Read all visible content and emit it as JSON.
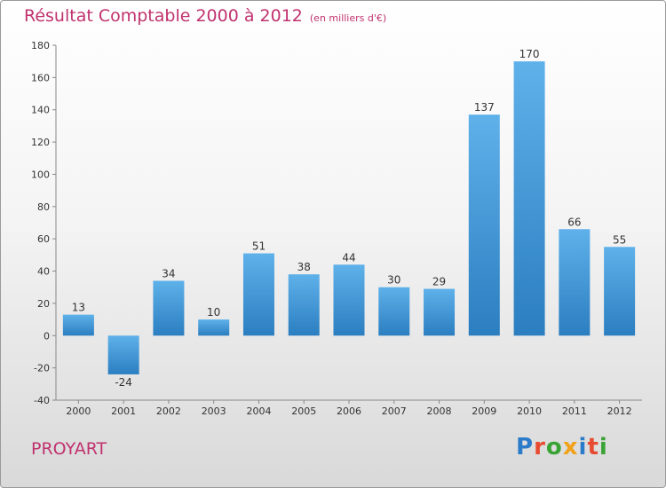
{
  "header": {
    "title": "Résultat Comptable 2000 à 2012",
    "subtitle": "(en milliers d'€)"
  },
  "footer": {
    "commune": "PROYART",
    "logo_text": "Proxiti"
  },
  "colors": {
    "title": "#c0326e",
    "bar_light": "#5aace6",
    "bar_dark": "#2a7dbf",
    "logo": [
      "#2b7bc9",
      "#e84a2f",
      "#3aa335",
      "#f1a21a",
      "#2b7bc9",
      "#e84a2f",
      "#3aa335"
    ]
  },
  "chart_data": {
    "type": "bar",
    "title": "Résultat Comptable 2000 à 2012",
    "subtitle": "(en milliers d'€)",
    "categories": [
      "2000",
      "2001",
      "2002",
      "2003",
      "2004",
      "2005",
      "2006",
      "2007",
      "2008",
      "2009",
      "2010",
      "2011",
      "2012"
    ],
    "values": [
      13,
      -24,
      34,
      10,
      51,
      38,
      44,
      30,
      29,
      137,
      170,
      66,
      55
    ],
    "ylim": [
      -40,
      180
    ],
    "yticks": [
      -40,
      -20,
      0,
      20,
      40,
      60,
      80,
      100,
      120,
      140,
      160,
      180
    ],
    "grid": false,
    "data_labels": true
  }
}
